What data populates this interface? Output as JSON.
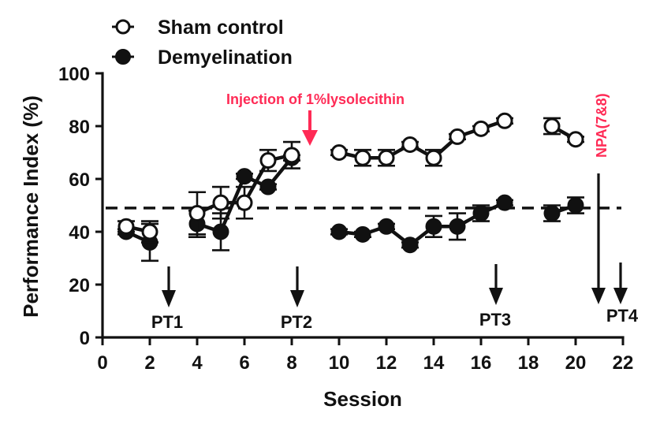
{
  "chart_data": {
    "type": "line",
    "title": "",
    "xlabel": "Session",
    "ylabel": "Performance Index (%)",
    "xlim": [
      0,
      22
    ],
    "ylim": [
      0,
      100
    ],
    "xticks": [
      0,
      2,
      4,
      6,
      8,
      10,
      12,
      14,
      16,
      18,
      20,
      22
    ],
    "yticks": [
      0,
      20,
      40,
      60,
      80,
      100
    ],
    "grid": false,
    "legend_position": "top-left",
    "reference_line": {
      "y": 49,
      "style": "dashed",
      "x_range": [
        0,
        22
      ]
    },
    "series": [
      {
        "name": "Sham control",
        "marker": "open-circle",
        "segments": [
          {
            "x": [
              1,
              2
            ],
            "y": [
              42,
              40
            ],
            "err": [
              2,
              4
            ]
          },
          {
            "x": [
              4,
              5,
              6,
              7,
              8
            ],
            "y": [
              47,
              51,
              51,
              67,
              69
            ],
            "err": [
              8,
              6,
              6,
              4,
              5
            ]
          },
          {
            "x": [
              10,
              11,
              12,
              13,
              14,
              15,
              16,
              17
            ],
            "y": [
              70,
              68,
              68,
              73,
              68,
              76,
              79,
              82
            ],
            "err": [
              1,
              3,
              3,
              1,
              3,
              1,
              1,
              1
            ]
          },
          {
            "x": [
              19,
              20
            ],
            "y": [
              80,
              75
            ],
            "err": [
              3,
              1
            ]
          }
        ]
      },
      {
        "name": "Demyelination",
        "marker": "filled-circle",
        "segments": [
          {
            "x": [
              1,
              2
            ],
            "y": [
              40,
              36
            ],
            "err": [
              1,
              7
            ]
          },
          {
            "x": [
              4,
              5,
              6,
              7,
              8
            ],
            "y": [
              43,
              40,
              61,
              57,
              68
            ],
            "err": [
              5,
              7,
              1,
              1,
              1
            ]
          },
          {
            "x": [
              10,
              11,
              12,
              13,
              14,
              15,
              16,
              17
            ],
            "y": [
              40,
              39,
              42,
              35,
              42,
              42,
              47,
              51
            ],
            "err": [
              1,
              1,
              1,
              1,
              4,
              5,
              3,
              1
            ]
          },
          {
            "x": [
              19,
              20
            ],
            "y": [
              47,
              50
            ],
            "err": [
              3,
              3
            ]
          }
        ]
      }
    ],
    "annotations": [
      {
        "text": "Injection of 1%lysolecithin",
        "color": "#ff2a55",
        "arrow_x": 8.8,
        "orientation": "horizontal"
      },
      {
        "text": "NPA(7&8)",
        "color": "#ff2a55",
        "arrow_x": 21.0,
        "orientation": "vertical"
      },
      {
        "text": "PT1",
        "arrow_x": 2.8
      },
      {
        "text": "PT2",
        "arrow_x": 8.2
      },
      {
        "text": "PT3",
        "arrow_x": 16.6
      },
      {
        "text": "PT4",
        "arrow_x": 21.9
      }
    ]
  },
  "legend": {
    "items": [
      {
        "label": "Sham control",
        "marker": "open-circle"
      },
      {
        "label": "Demyelination",
        "marker": "filled-circle"
      }
    ]
  },
  "axes": {
    "x_title": "Session",
    "y_title": "Performance Index (%)",
    "x_tick_labels": [
      "0",
      "2",
      "4",
      "6",
      "8",
      "10",
      "12",
      "14",
      "16",
      "18",
      "20",
      "22"
    ],
    "y_tick_labels": [
      "0",
      "20",
      "40",
      "60",
      "80",
      "100"
    ]
  },
  "annotations": {
    "injection": "Injection of 1%lysolecithin",
    "npa": "NPA(7&8)",
    "pt1": "PT1",
    "pt2": "PT2",
    "pt3": "PT3",
    "pt4": "PT4"
  },
  "colors": {
    "annotation_red": "#ff2a55",
    "ink": "#111111"
  }
}
